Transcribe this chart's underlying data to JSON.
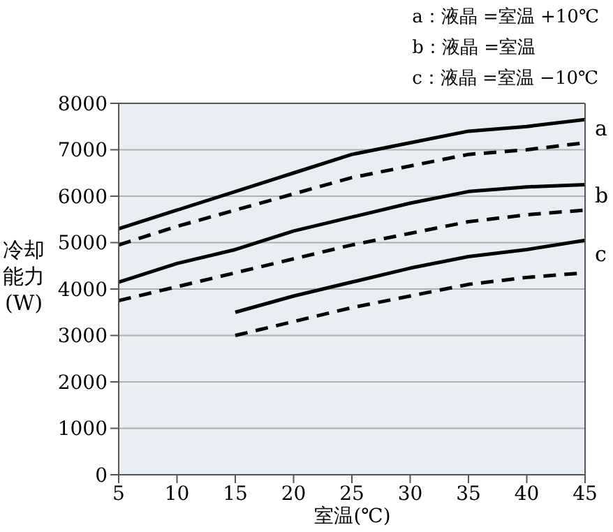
{
  "chart_data": {
    "type": "line",
    "xlabel": "室温(℃)",
    "ylabel": "冷却能力 (W)",
    "x": [
      5,
      10,
      15,
      20,
      25,
      30,
      35,
      40,
      45
    ],
    "series": [
      {
        "color": "#000000",
        "line_style": "solid",
        "values": [
          5300,
          5700,
          6100,
          6500,
          6900,
          7150,
          7400,
          7500,
          7650
        ]
      },
      {
        "color": "#000000",
        "line_style": "dashed",
        "values": [
          4950,
          5350,
          5700,
          6050,
          6400,
          6650,
          6900,
          7000,
          7150
        ]
      },
      {
        "color": "#000000",
        "line_style": "solid",
        "values": [
          4150,
          4550,
          4850,
          5250,
          5550,
          5850,
          6100,
          6200,
          6250
        ]
      },
      {
        "color": "#000000",
        "line_style": "dashed",
        "values": [
          3750,
          4050,
          4350,
          4650,
          4950,
          5200,
          5450,
          5600,
          5700
        ]
      },
      {
        "color": "#000000",
        "line_style": "solid",
        "values": [
          null,
          null,
          3500,
          3850,
          4150,
          4450,
          4700,
          4850,
          5050
        ]
      },
      {
        "color": "#000000",
        "line_style": "dashed",
        "values": [
          null,
          null,
          3000,
          3300,
          3600,
          3850,
          4100,
          4250,
          4350
        ]
      }
    ],
    "xlim": [
      5,
      45
    ],
    "xticks": [
      5,
      10,
      15,
      20,
      25,
      30,
      35,
      40,
      45
    ],
    "ylim": [
      0,
      8000
    ],
    "yticks": [
      0,
      1000,
      2000,
      3000,
      4000,
      5000,
      6000,
      7000,
      8000
    ],
    "grid": "y",
    "marker": "none",
    "annotations": [
      "a：液晶 =室温 +10℃",
      "b：液晶 =室温",
      "c：液晶 =室温 −10℃",
      "a",
      "b",
      "c"
    ]
  }
}
